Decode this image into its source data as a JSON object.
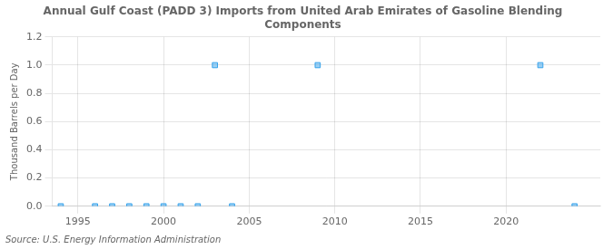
{
  "chart_data": {
    "type": "scatter",
    "title": "Annual Gulf Coast (PADD 3) Imports from United Arab Emirates of Gasoline Blending\nComponents",
    "ylabel": "Thousand Barrels per Day",
    "source": "Source: U.S. Energy Information Administration",
    "x": [
      1994,
      1996,
      1997,
      1998,
      1999,
      2000,
      2001,
      2002,
      2003,
      2004,
      2009,
      2022,
      2024
    ],
    "values": [
      0.0,
      0.0,
      0.0,
      0.0,
      0.0,
      0.0,
      0.0,
      0.0,
      1.0,
      0.0,
      1.0,
      1.0,
      0.0
    ],
    "marker": "square",
    "xlim": [
      1993.5,
      2025.5
    ],
    "ylim": [
      0.0,
      1.2
    ],
    "xticks": [
      1995,
      2000,
      2005,
      2010,
      2015,
      2020
    ],
    "yticks": [
      {
        "value": 0.0,
        "label": "0.0"
      },
      0.2,
      0.4,
      0.6,
      0.8,
      {
        "value": 1.0,
        "label": "1.0"
      },
      1.2
    ],
    "grid": true
  }
}
